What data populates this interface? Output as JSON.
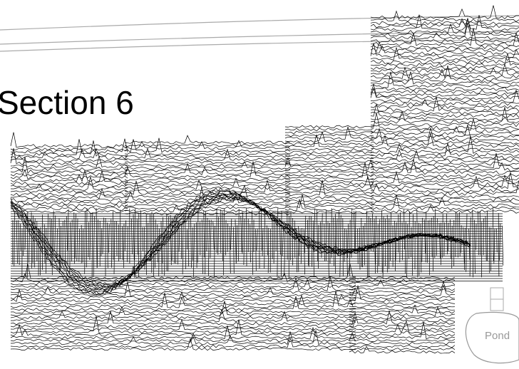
{
  "map": {
    "title": "Section 6",
    "labels": {
      "pond": "Pond"
    }
  }
}
